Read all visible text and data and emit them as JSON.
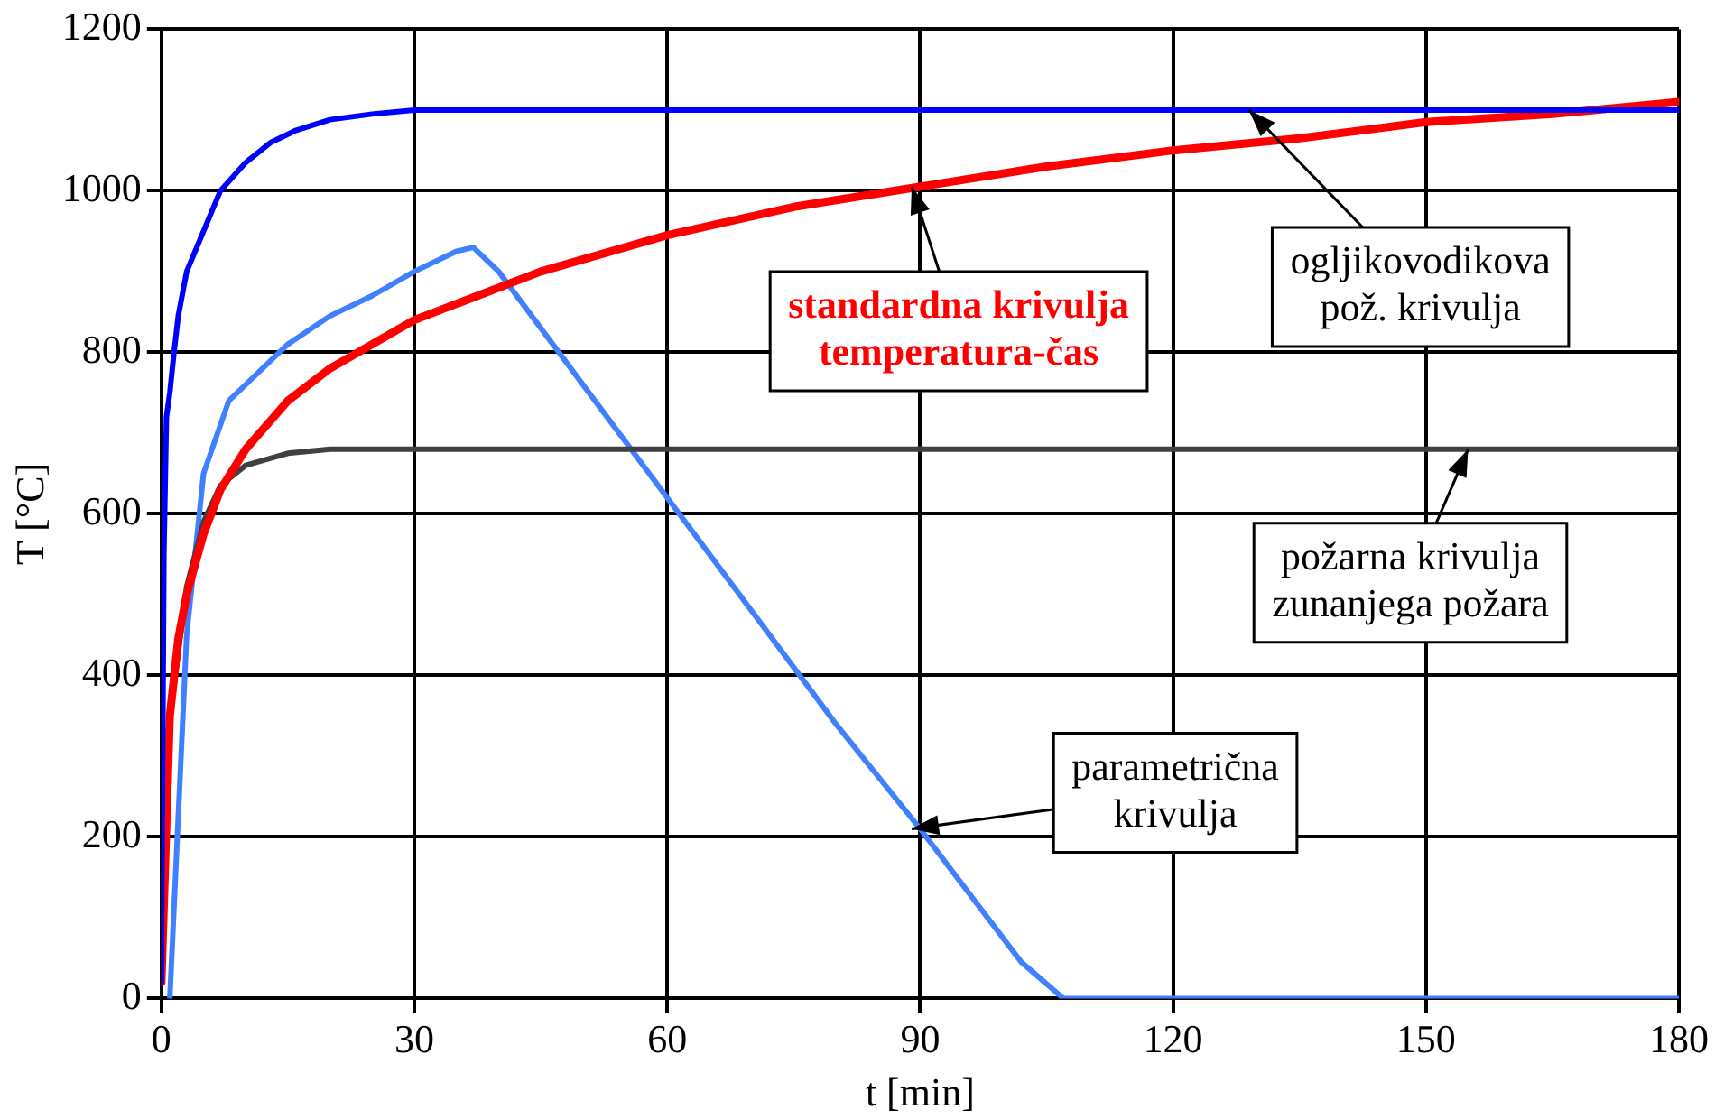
{
  "chart_data": {
    "type": "line",
    "xlabel": "t [min]",
    "ylabel": "T [°C]",
    "xlim": [
      0,
      180
    ],
    "xticks": [
      0,
      30,
      60,
      90,
      120,
      150,
      180
    ],
    "ylim": [
      0,
      1200
    ],
    "yticks": [
      0,
      200,
      400,
      600,
      800,
      1000,
      1200
    ],
    "grid": true,
    "legend": false,
    "marker": "none",
    "line_style": "solid",
    "series": [
      {
        "color": "#0000ff",
        "x": [
          0,
          0.3,
          0.6,
          1,
          1.5,
          2,
          3,
          4,
          5,
          7,
          10,
          13,
          16,
          20,
          25,
          30,
          180
        ],
        "values": [
          20,
          550,
          720,
          750,
          800,
          845,
          900,
          925,
          950,
          1000,
          1035,
          1060,
          1075,
          1088,
          1095,
          1100,
          1100
        ]
      },
      {
        "color": "#ff0000",
        "x": [
          0,
          1,
          2,
          3,
          5,
          7,
          10,
          15,
          20,
          30,
          45,
          60,
          75,
          90,
          105,
          120,
          135,
          150,
          165,
          180
        ],
        "values": [
          20,
          350,
          445,
          500,
          575,
          630,
          680,
          740,
          780,
          840,
          900,
          945,
          980,
          1005,
          1030,
          1050,
          1065,
          1085,
          1095,
          1110
        ]
      },
      {
        "color": "#404040",
        "x": [
          0,
          1,
          3,
          5,
          7,
          10,
          15,
          20,
          180
        ],
        "values": [
          20,
          345,
          510,
          590,
          635,
          660,
          675,
          680,
          680
        ]
      },
      {
        "color": "#4080ff",
        "x": [
          1,
          3,
          5,
          8,
          10,
          15,
          20,
          25,
          30,
          35,
          37,
          40,
          60,
          80,
          90,
          102,
          107,
          180
        ],
        "values": [
          0,
          450,
          650,
          740,
          760,
          810,
          845,
          870,
          900,
          925,
          930,
          900,
          620,
          340,
          210,
          45,
          0,
          0
        ]
      }
    ],
    "annotations": [
      {
        "text": "ogljikovodikova\npož. krivulja",
        "x": 129,
        "y": 1100
      },
      {
        "text": "standardna krivulja\ntemperatura-čas",
        "x": 89,
        "y": 1005
      },
      {
        "text": "požarna krivulja\nzunanjega požara",
        "x": 155,
        "y": 680
      },
      {
        "text": "parametrična\nkrivulja",
        "x": 89,
        "y": 210
      }
    ]
  }
}
